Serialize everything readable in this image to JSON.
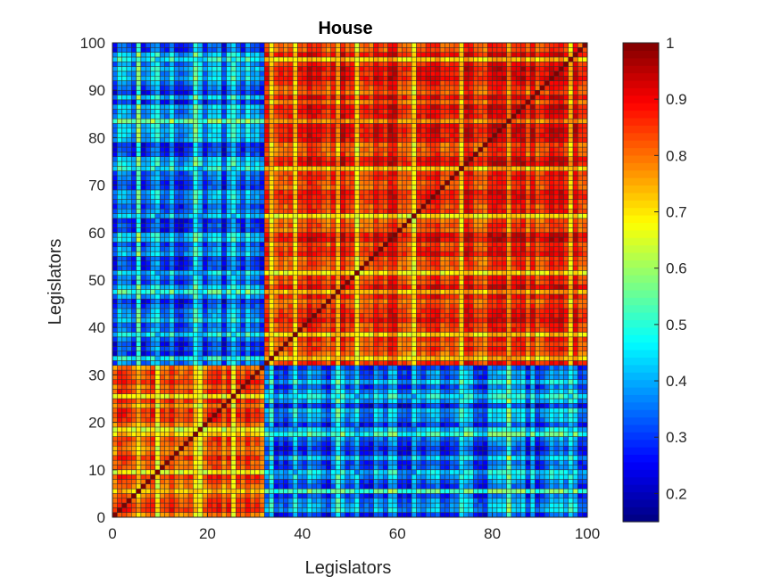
{
  "chart_data": {
    "type": "heatmap",
    "title": "House",
    "xlabel": "Legislators",
    "ylabel": "Legislators",
    "xlim": [
      0,
      100
    ],
    "ylim": [
      0,
      100
    ],
    "xticks": [
      "0",
      "20",
      "40",
      "60",
      "80",
      "100"
    ],
    "yticks": [
      "0",
      "10",
      "20",
      "30",
      "40",
      "50",
      "60",
      "70",
      "80",
      "90",
      "100"
    ],
    "colormap": "jet",
    "color_range": [
      0.15,
      1.0
    ],
    "colorbar_ticks": [
      "0.2",
      "0.3",
      "0.4",
      "0.5",
      "0.6",
      "0.7",
      "0.8",
      "0.9",
      "1"
    ],
    "n": 100,
    "blocks": [
      {
        "rows": [
          1,
          32
        ],
        "cols": [
          1,
          32
        ],
        "value": 0.83
      },
      {
        "rows": [
          33,
          100
        ],
        "cols": [
          33,
          100
        ],
        "value": 0.86
      },
      {
        "rows": [
          1,
          32
        ],
        "cols": [
          33,
          100
        ],
        "value": 0.35
      },
      {
        "rows": [
          33,
          100
        ],
        "cols": [
          1,
          32
        ],
        "value": 0.35
      }
    ],
    "diagonal_value": 1.0,
    "grid": false
  }
}
